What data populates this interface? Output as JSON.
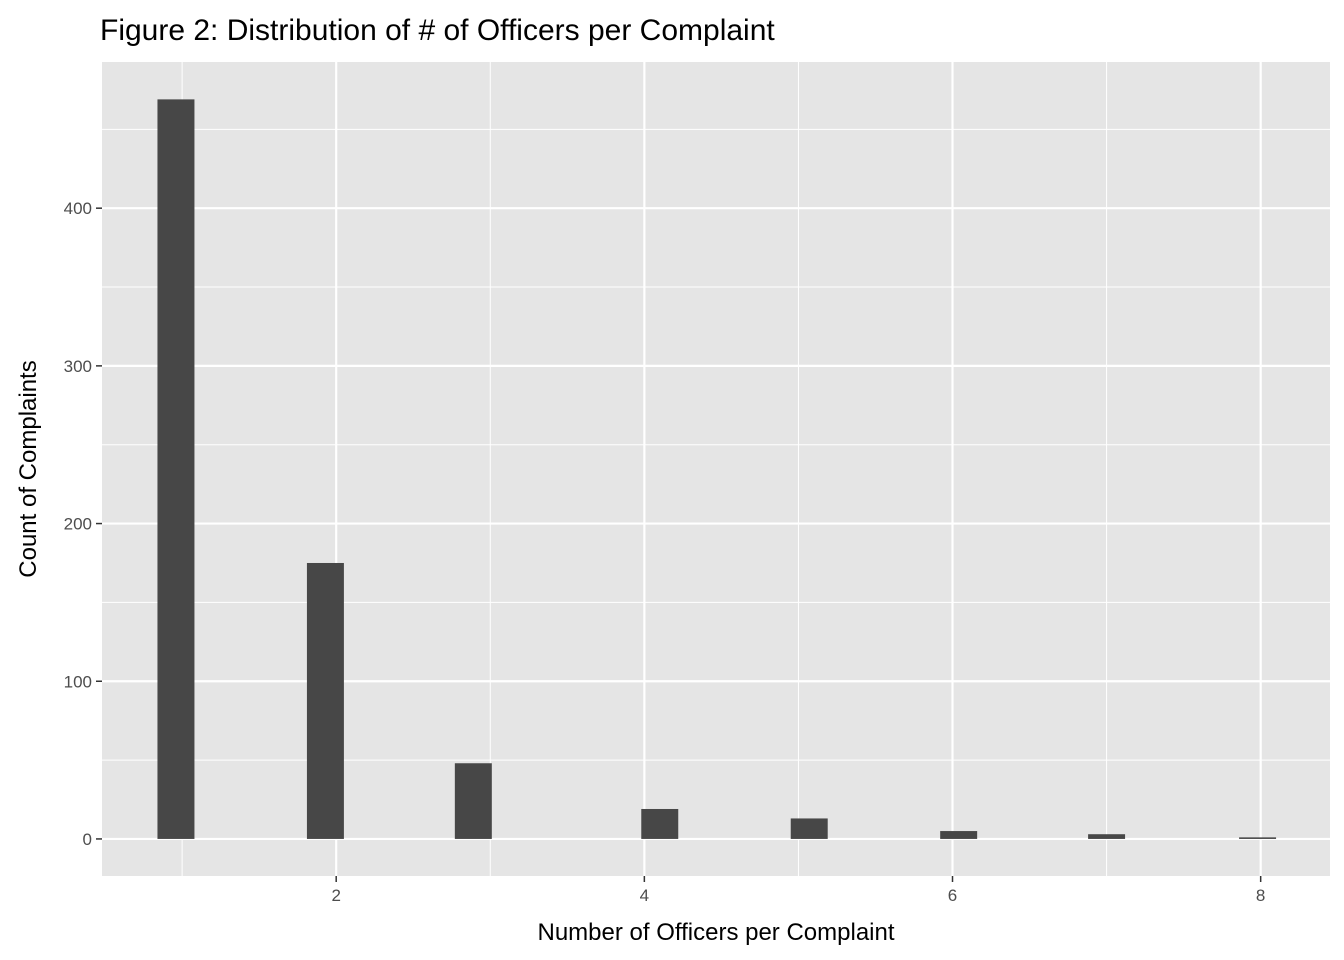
{
  "chart_data": {
    "type": "bar",
    "title": "Figure 2: Distribution of # of Officers per Complaint",
    "xlabel": "Number of Officers per Complaint",
    "ylabel": "Count of Complaints",
    "x": [
      0.96,
      1.93,
      2.89,
      4.1,
      5.07,
      6.04,
      7.0,
      7.98
    ],
    "values": [
      469,
      175,
      48,
      19,
      13,
      5,
      3,
      1
    ],
    "bin_width": 0.24,
    "xlim": [
      0.48,
      8.45
    ],
    "ylim": [
      -23.5,
      492.7
    ],
    "xticks": [
      2,
      4,
      6,
      8
    ],
    "xtick_labels": [
      "2",
      "4",
      "6",
      "8"
    ],
    "yticks": [
      0,
      100,
      200,
      300,
      400
    ],
    "ytick_labels": [
      "0",
      "100",
      "200",
      "300",
      "400"
    ],
    "grid": true,
    "colors": {
      "bar": "#474747",
      "panel": "#e5e5e5",
      "grid": "#ffffff"
    }
  }
}
